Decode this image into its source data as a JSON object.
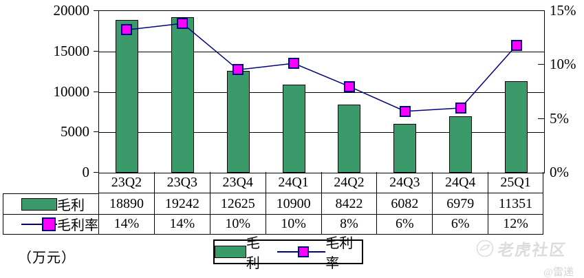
{
  "chart_data": {
    "type": "bar+line-combo",
    "title": "",
    "categories": [
      "23Q2",
      "23Q3",
      "23Q4",
      "24Q1",
      "24Q2",
      "24Q3",
      "24Q4",
      "25Q1"
    ],
    "series": [
      {
        "name": "毛利",
        "type": "bar",
        "axis": "left",
        "color": "#3A9A6A",
        "border_color": "#000000",
        "values": [
          18890,
          19242,
          12625,
          10900,
          8422,
          6082,
          6979,
          11351
        ]
      },
      {
        "name": "毛利率",
        "type": "line",
        "axis": "right",
        "line_color": "#000080",
        "marker_color": "#FF00FF",
        "values_percent": [
          14,
          14,
          10,
          10,
          8,
          6,
          6,
          12
        ],
        "plot_percent_estimates": [
          13.25,
          13.85,
          9.55,
          10.15,
          8.0,
          5.7,
          6.0,
          11.8
        ]
      }
    ],
    "left_axis": {
      "min": 0,
      "max": 20000,
      "tick_labels": [
        "20000",
        "15000",
        "10000",
        "5000",
        "0"
      ]
    },
    "right_axis": {
      "min": 0,
      "max": 15,
      "tick_labels": [
        "15%",
        "10%",
        "5%",
        "0%"
      ]
    },
    "grid": true,
    "legend_position": "bottom-center"
  },
  "table": {
    "rows": [
      {
        "label": "毛利",
        "values": [
          "18890",
          "19242",
          "12625",
          "10900",
          "8422",
          "6082",
          "6979",
          "11351"
        ]
      },
      {
        "label": "毛利率",
        "values": [
          "14%",
          "14%",
          "10%",
          "10%",
          "8%",
          "6%",
          "6%",
          "12%"
        ]
      }
    ]
  },
  "unit_label": "（万元）",
  "legend": {
    "bar_label": "毛利",
    "line_label": "毛利率"
  },
  "watermark": {
    "brand": "老虎社区",
    "author": "@雷递"
  }
}
